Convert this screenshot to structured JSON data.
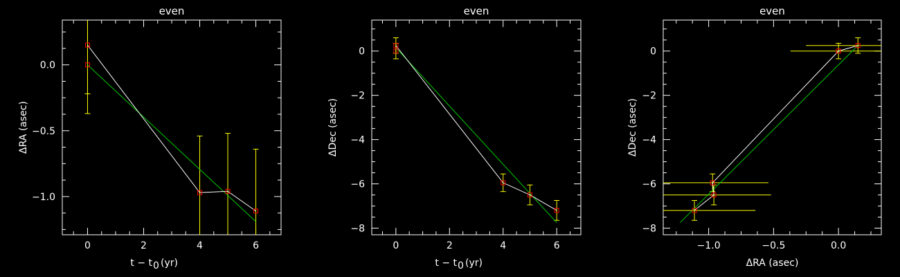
{
  "chart_data": [
    {
      "type": "scatter",
      "title": "even",
      "xlabel": "t − t",
      "xlabel_sub": "0",
      "xlabel_unit": "(yr)",
      "ylabel": "ΔRA (asec)",
      "xlim": [
        -0.9,
        6.9
      ],
      "ylim": [
        -1.29,
        0.34
      ],
      "xticks": [
        0,
        2,
        4,
        6
      ],
      "xtick_labels": [
        "0",
        "2",
        "4",
        "6"
      ],
      "yticks": [
        0.0,
        -0.5,
        -1.0
      ],
      "ytick_labels": [
        "0.0",
        "−0.5",
        "−1.0"
      ],
      "points": [
        {
          "x": 0,
          "y": 0.15,
          "yerr": 0.37
        },
        {
          "x": 0,
          "y": 0.0,
          "yerr": 0.37
        },
        {
          "x": 4,
          "y": -0.97,
          "yerr": 0.43
        },
        {
          "x": 5,
          "y": -0.96,
          "yerr": 0.44
        },
        {
          "x": 6,
          "y": -1.11,
          "yerr": 0.47
        }
      ],
      "connect_line": [
        [
          0,
          0.15
        ],
        [
          4,
          -0.97
        ],
        [
          5,
          -0.96
        ],
        [
          6,
          -1.11
        ]
      ],
      "fit_line": [
        [
          0,
          0.0
        ],
        [
          6,
          -1.19
        ]
      ]
    },
    {
      "type": "scatter",
      "title": "even",
      "xlabel": "t − t",
      "xlabel_sub": "0",
      "xlabel_unit": "(yr)",
      "ylabel": "ΔDec (asec)",
      "xlim": [
        -0.9,
        6.9
      ],
      "ylim": [
        -8.3,
        1.4
      ],
      "xticks": [
        0,
        2,
        4,
        6
      ],
      "xtick_labels": [
        "0",
        "2",
        "4",
        "6"
      ],
      "yticks": [
        0,
        -2,
        -4,
        -6,
        -8
      ],
      "ytick_labels": [
        "0",
        "−2",
        "−4",
        "−6",
        "−8"
      ],
      "points": [
        {
          "x": 0,
          "y": 0.25,
          "yerr": 0.35
        },
        {
          "x": 0,
          "y": 0.0,
          "yerr": 0.35
        },
        {
          "x": 4,
          "y": -5.95,
          "yerr": 0.4
        },
        {
          "x": 5,
          "y": -6.5,
          "yerr": 0.45
        },
        {
          "x": 6,
          "y": -7.2,
          "yerr": 0.45
        }
      ],
      "connect_line": [
        [
          0,
          0.25
        ],
        [
          4,
          -5.95
        ],
        [
          5,
          -6.5
        ],
        [
          6,
          -7.2
        ]
      ],
      "fit_line": [
        [
          0,
          0.15
        ],
        [
          6,
          -7.75
        ]
      ]
    },
    {
      "type": "scatter",
      "title": "even",
      "xlabel": "ΔRA (asec)",
      "ylabel": "ΔDec (asec)",
      "xlim": [
        -1.35,
        0.33
      ],
      "ylim": [
        -8.3,
        1.4
      ],
      "xticks": [
        -1.0,
        -0.5,
        0.0
      ],
      "xtick_labels": [
        "−1.0",
        "−0.5",
        "0.0"
      ],
      "yticks": [
        0,
        -2,
        -4,
        -6,
        -8
      ],
      "ytick_labels": [
        "0",
        "−2",
        "−4",
        "−6",
        "−8"
      ],
      "points": [
        {
          "x": 0.15,
          "y": 0.25,
          "xerr": 0.4,
          "yerr": 0.35
        },
        {
          "x": 0.0,
          "y": 0.0,
          "xerr": 0.37,
          "yerr": 0.35
        },
        {
          "x": -0.97,
          "y": -5.95,
          "xerr": 0.43,
          "yerr": 0.4
        },
        {
          "x": -0.96,
          "y": -6.5,
          "xerr": 0.44,
          "yerr": 0.45
        },
        {
          "x": -1.11,
          "y": -7.2,
          "xerr": 0.47,
          "yerr": 0.45
        }
      ],
      "connect_line": [
        [
          0.15,
          0.25
        ],
        [
          0.0,
          0.0
        ],
        [
          -0.97,
          -5.95
        ],
        [
          -0.96,
          -6.5
        ],
        [
          -1.11,
          -7.2
        ]
      ],
      "fit_line": [
        [
          0.15,
          0.25
        ],
        [
          -1.22,
          -7.75
        ]
      ]
    }
  ],
  "colors": {
    "axes": "#ffffff",
    "errorbar": "#ffff00",
    "marker": "#ff0000",
    "connect_line": "#ffffff",
    "fit_line": "#00cc00"
  }
}
